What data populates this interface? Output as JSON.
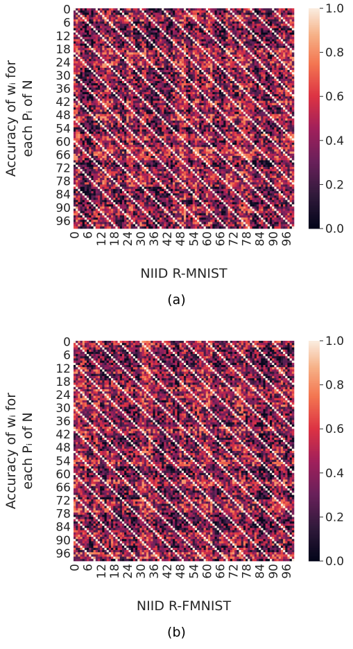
{
  "chart_data": [
    {
      "type": "heatmap",
      "title": "",
      "xlabel": "NIID R-MNIST",
      "ylabel_line1": "Accuracy of wᵢ for",
      "ylabel_line2": "each Pᵢ of N",
      "n_rows": 100,
      "n_cols": 100,
      "tick_labels": [
        "0",
        "6",
        "12",
        "18",
        "24",
        "30",
        "36",
        "42",
        "48",
        "54",
        "60",
        "66",
        "72",
        "78",
        "84",
        "90",
        "96"
      ],
      "colorbar": {
        "ticks": [
          "0.0",
          "0.2",
          "0.4",
          "0.6",
          "0.8",
          "1.0"
        ],
        "min": 0.0,
        "max": 1.0,
        "colormap": "rocket"
      },
      "pattern": {
        "diagonal_value": 1.0,
        "diagonal_period": 10,
        "off_diagonal_range": [
          0.05,
          0.75
        ]
      },
      "caption": "(a)"
    },
    {
      "type": "heatmap",
      "title": "",
      "xlabel": "NIID R-FMNIST",
      "ylabel_line1": "Accuracy of wᵢ for",
      "ylabel_line2": "each Pᵢ of N",
      "n_rows": 100,
      "n_cols": 100,
      "tick_labels": [
        "0",
        "6",
        "12",
        "18",
        "24",
        "30",
        "36",
        "42",
        "48",
        "54",
        "60",
        "66",
        "72",
        "78",
        "84",
        "90",
        "96"
      ],
      "colorbar": {
        "ticks": [
          "0.0",
          "0.2",
          "0.4",
          "0.6",
          "0.8",
          "1.0"
        ],
        "min": 0.0,
        "max": 1.0,
        "colormap": "rocket"
      },
      "pattern": {
        "diagonal_value": 1.0,
        "diagonal_period": 10,
        "off_diagonal_range": [
          0.05,
          0.75
        ]
      },
      "caption": "(b)"
    }
  ]
}
